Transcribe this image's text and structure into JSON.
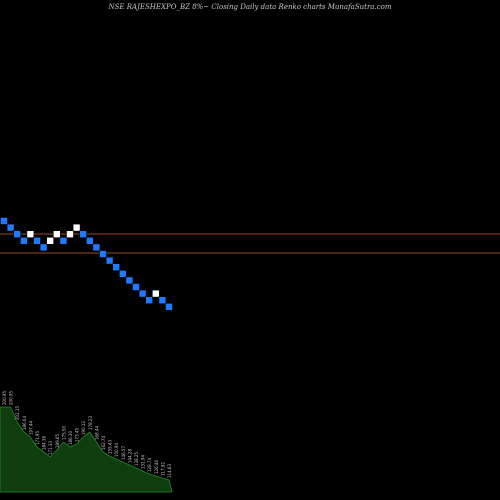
{
  "header": {
    "title": "NSE RAJESHEXPO_BZ 8%~  Closing Daily data  Renko  charts MunafaSutra.com"
  },
  "colors": {
    "background": "#000000",
    "brick_down": "#1e7bff",
    "brick_up": "#ffffff",
    "reference_line": "#c8642a",
    "volume_fill": "#0f3d10",
    "volume_line": "#1f8a25",
    "label": "#c8c8c8"
  },
  "chart_data": {
    "type": "renko",
    "reference_lines": [
      1,
      2
    ],
    "bricks": [
      {
        "dir": "down",
        "level": 0
      },
      {
        "dir": "down",
        "level": 1
      },
      {
        "dir": "down",
        "level": 2
      },
      {
        "dir": "down",
        "level": 3
      },
      {
        "dir": "up",
        "level": 2
      },
      {
        "dir": "down",
        "level": 3
      },
      {
        "dir": "down",
        "level": 4
      },
      {
        "dir": "up",
        "level": 3
      },
      {
        "dir": "up",
        "level": 2
      },
      {
        "dir": "down",
        "level": 3
      },
      {
        "dir": "up",
        "level": 2
      },
      {
        "dir": "up",
        "level": 1
      },
      {
        "dir": "down",
        "level": 2
      },
      {
        "dir": "down",
        "level": 3
      },
      {
        "dir": "down",
        "level": 4
      },
      {
        "dir": "down",
        "level": 5
      },
      {
        "dir": "down",
        "level": 6
      },
      {
        "dir": "down",
        "level": 7
      },
      {
        "dir": "down",
        "level": 8
      },
      {
        "dir": "down",
        "level": 9
      },
      {
        "dir": "down",
        "level": 10
      },
      {
        "dir": "down",
        "level": 11
      },
      {
        "dir": "down",
        "level": 12
      },
      {
        "dir": "up",
        "level": 11
      },
      {
        "dir": "down",
        "level": 12
      },
      {
        "dir": "down",
        "level": 13
      }
    ],
    "volume": [
      {
        "value": 0.85,
        "label": "200.95"
      },
      {
        "value": 0.85,
        "label": "200.95"
      },
      {
        "value": 0.7,
        "label": "202.15"
      },
      {
        "value": 0.6,
        "label": "186.04"
      },
      {
        "value": 0.55,
        "label": "197.44"
      },
      {
        "value": 0.45,
        "label": "171.95"
      },
      {
        "value": 0.4,
        "label": "184.36"
      },
      {
        "value": 0.35,
        "label": "171.33"
      },
      {
        "value": 0.42,
        "label": "189.65"
      },
      {
        "value": 0.5,
        "label": "175.50"
      },
      {
        "value": 0.45,
        "label": "186.30"
      },
      {
        "value": 0.48,
        "label": "173.45"
      },
      {
        "value": 0.55,
        "label": "190.12"
      },
      {
        "value": 0.6,
        "label": "178.23"
      },
      {
        "value": 0.5,
        "label": "168.44"
      },
      {
        "value": 0.4,
        "label": "162.74"
      },
      {
        "value": 0.36,
        "label": "155.43"
      },
      {
        "value": 0.33,
        "label": "150.94"
      },
      {
        "value": 0.3,
        "label": "146.57"
      },
      {
        "value": 0.27,
        "label": "144.28"
      },
      {
        "value": 0.24,
        "label": "138.25"
      },
      {
        "value": 0.21,
        "label": "131.94"
      },
      {
        "value": 0.18,
        "label": "128.74"
      },
      {
        "value": 0.16,
        "label": "126.46"
      },
      {
        "value": 0.14,
        "label": "117.92"
      },
      {
        "value": 0.12,
        "label": "114.63"
      }
    ]
  }
}
